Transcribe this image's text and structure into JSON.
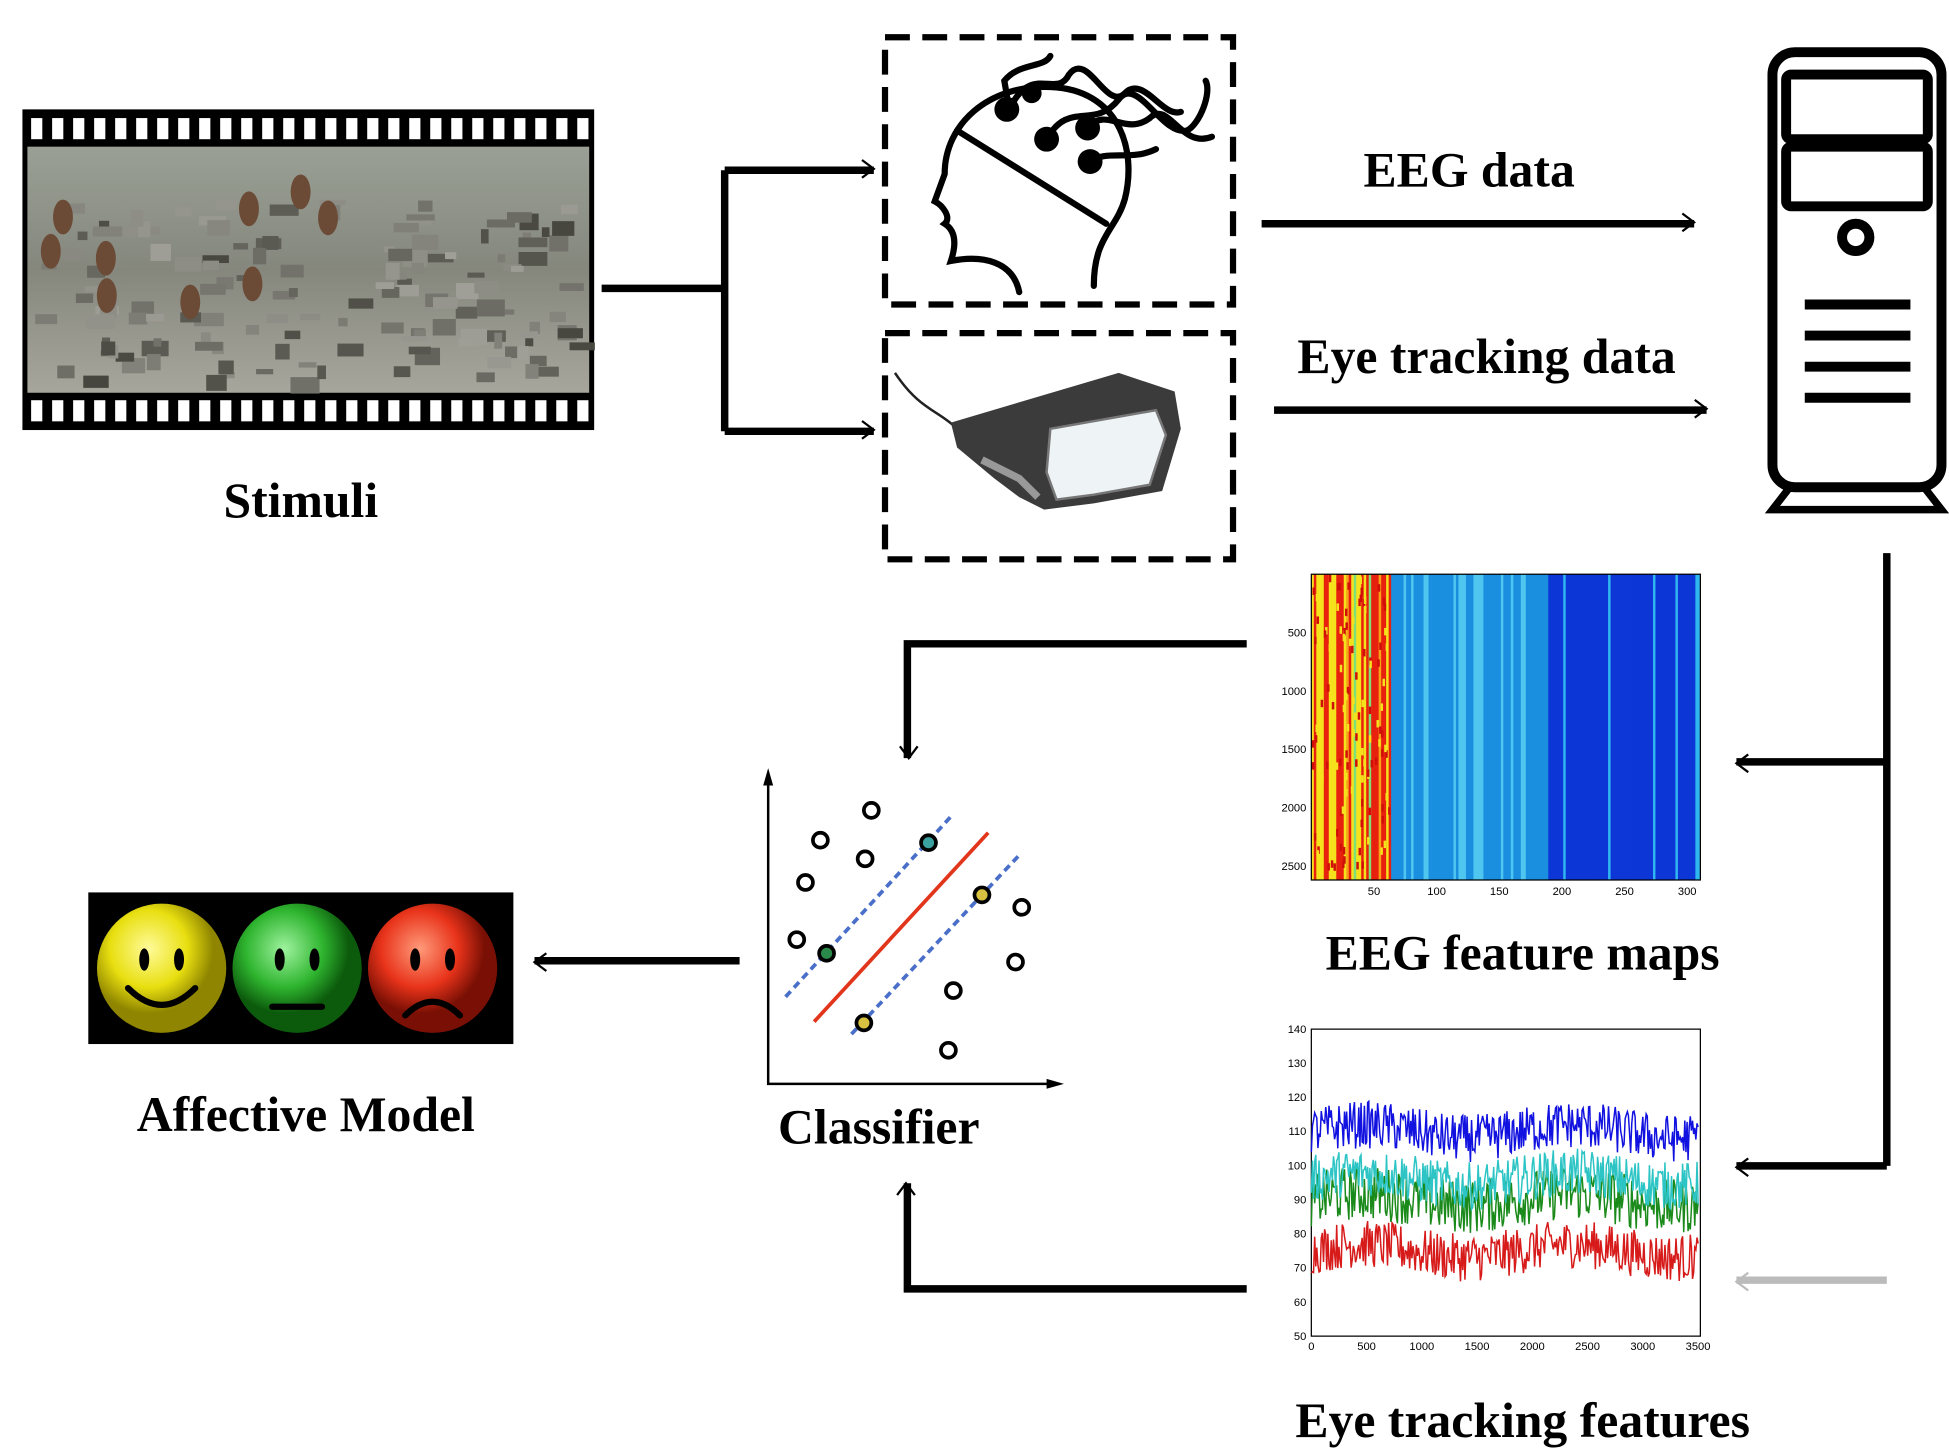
{
  "stimuli": {
    "label": "Stimuli"
  },
  "edges": [
    {
      "label": "EEG data"
    },
    {
      "label": "Eye tracking data"
    }
  ],
  "eeg_feature_maps": {
    "label": "EEG feature maps",
    "yticks": [
      500,
      1000,
      1500,
      2000,
      2500
    ],
    "xticks": [
      50,
      100,
      150,
      200,
      250,
      300
    ]
  },
  "eye_tracking_features": {
    "label": "Eye tracking features",
    "yticks": [
      50,
      60,
      70,
      80,
      90,
      100,
      110,
      120,
      130,
      140
    ],
    "xticks": [
      0,
      500,
      1000,
      1500,
      2000,
      2500,
      3000,
      3500
    ]
  },
  "classifier": {
    "label": "Classifier"
  },
  "affective_model": {
    "label": "Affective Model"
  }
}
